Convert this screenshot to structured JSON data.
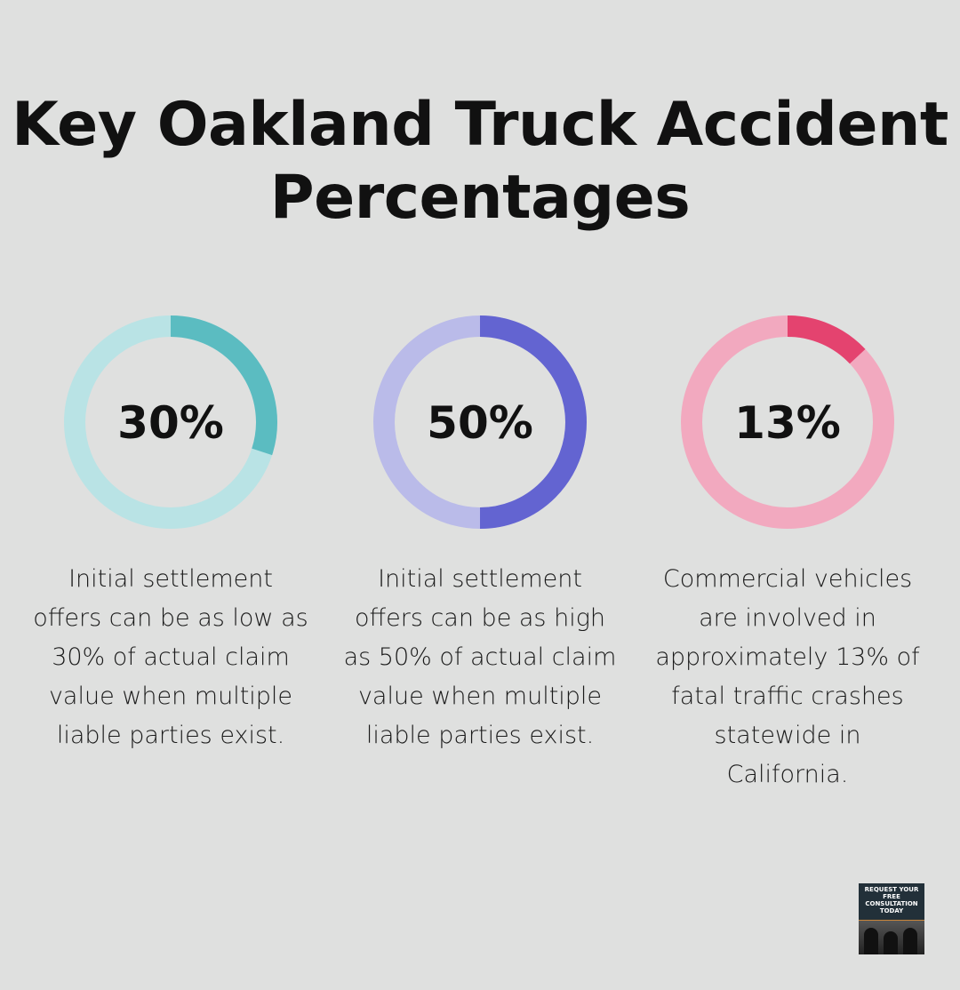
{
  "title": "Key Oakland Truck Accident Percentages",
  "chart_data": [
    {
      "type": "pie",
      "subtype": "donut",
      "value": 30,
      "label": "30%",
      "description": "Initial settlement offers can be as low as 30% of actual claim value when multiple liable parties exist.",
      "colors": {
        "fill": "#5bbcc1",
        "track": "#b9e3e5"
      }
    },
    {
      "type": "pie",
      "subtype": "donut",
      "value": 50,
      "label": "50%",
      "description": "Initial settlement offers can be as high as 50% of actual claim value when multiple liable parties exist.",
      "colors": {
        "fill": "#6364d1",
        "track": "#babbe9"
      }
    },
    {
      "type": "pie",
      "subtype": "donut",
      "value": 13,
      "label": "13%",
      "description": "Commercial vehicles are involved in approximately 13% of fatal traffic crashes statewide in California.",
      "colors": {
        "fill": "#e4436f",
        "track": "#f2a9bf"
      }
    }
  ],
  "badge": {
    "text": "REQUEST YOUR FREE CONSULTATION TODAY"
  }
}
